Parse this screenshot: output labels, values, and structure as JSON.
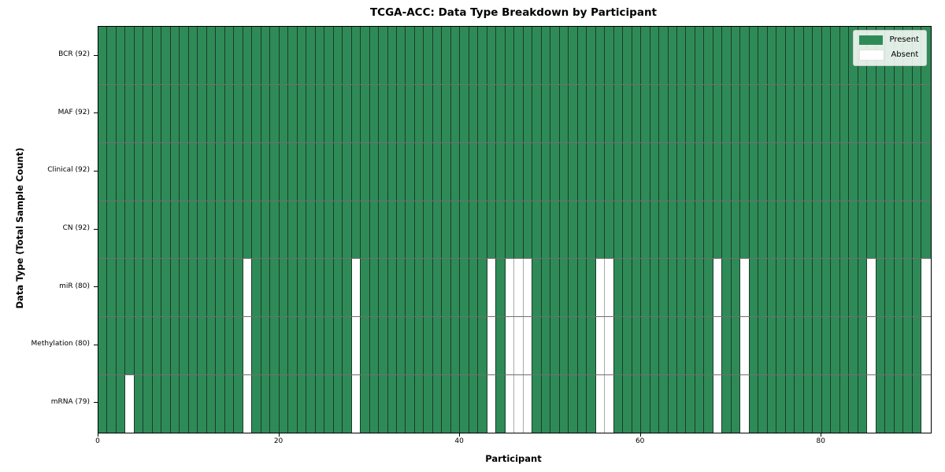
{
  "chart_data": {
    "type": "heatmap",
    "title": "TCGA-ACC: Data Type Breakdown by Participant",
    "xlabel": "Participant",
    "ylabel": "Data Type (Total Sample Count)",
    "n_participants": 92,
    "x_range": [
      0,
      92
    ],
    "x_ticks": [
      0,
      20,
      40,
      60,
      80
    ],
    "rows": [
      {
        "data_type": "BCR",
        "label": "BCR (92)",
        "present_count": 92,
        "absent_participants": []
      },
      {
        "data_type": "MAF",
        "label": "MAF (92)",
        "present_count": 92,
        "absent_participants": []
      },
      {
        "data_type": "Clinical",
        "label": "Clinical (92)",
        "present_count": 92,
        "absent_participants": []
      },
      {
        "data_type": "CN",
        "label": "CN (92)",
        "present_count": 92,
        "absent_participants": []
      },
      {
        "data_type": "miR",
        "label": "miR (80)",
        "present_count": 80,
        "absent_participants": [
          16,
          28,
          43,
          45,
          46,
          47,
          55,
          56,
          68,
          71,
          85,
          91
        ]
      },
      {
        "data_type": "Methylation",
        "label": "Methylation (80)",
        "present_count": 80,
        "absent_participants": [
          16,
          28,
          43,
          45,
          46,
          47,
          55,
          56,
          68,
          71,
          85,
          91
        ]
      },
      {
        "data_type": "mRNA",
        "label": "mRNA (79)",
        "present_count": 79,
        "absent_participants": [
          3,
          16,
          28,
          43,
          45,
          46,
          47,
          55,
          56,
          68,
          71,
          85,
          91
        ]
      }
    ],
    "legend": {
      "position": "upper-right",
      "entries": [
        {
          "label": "Present",
          "color": "#2e8b57"
        },
        {
          "label": "Absent",
          "color": "#ffffff"
        }
      ]
    },
    "colors": {
      "present": "#2e8b57",
      "absent": "#ffffff",
      "grid_dark": "#1e3a2a",
      "grid_light": "#aaaaaa",
      "row_divider": "#6f6f6f",
      "spine": "#000000",
      "tick": "#000000",
      "text": "#000000",
      "legend_border": "#cccccc"
    }
  }
}
